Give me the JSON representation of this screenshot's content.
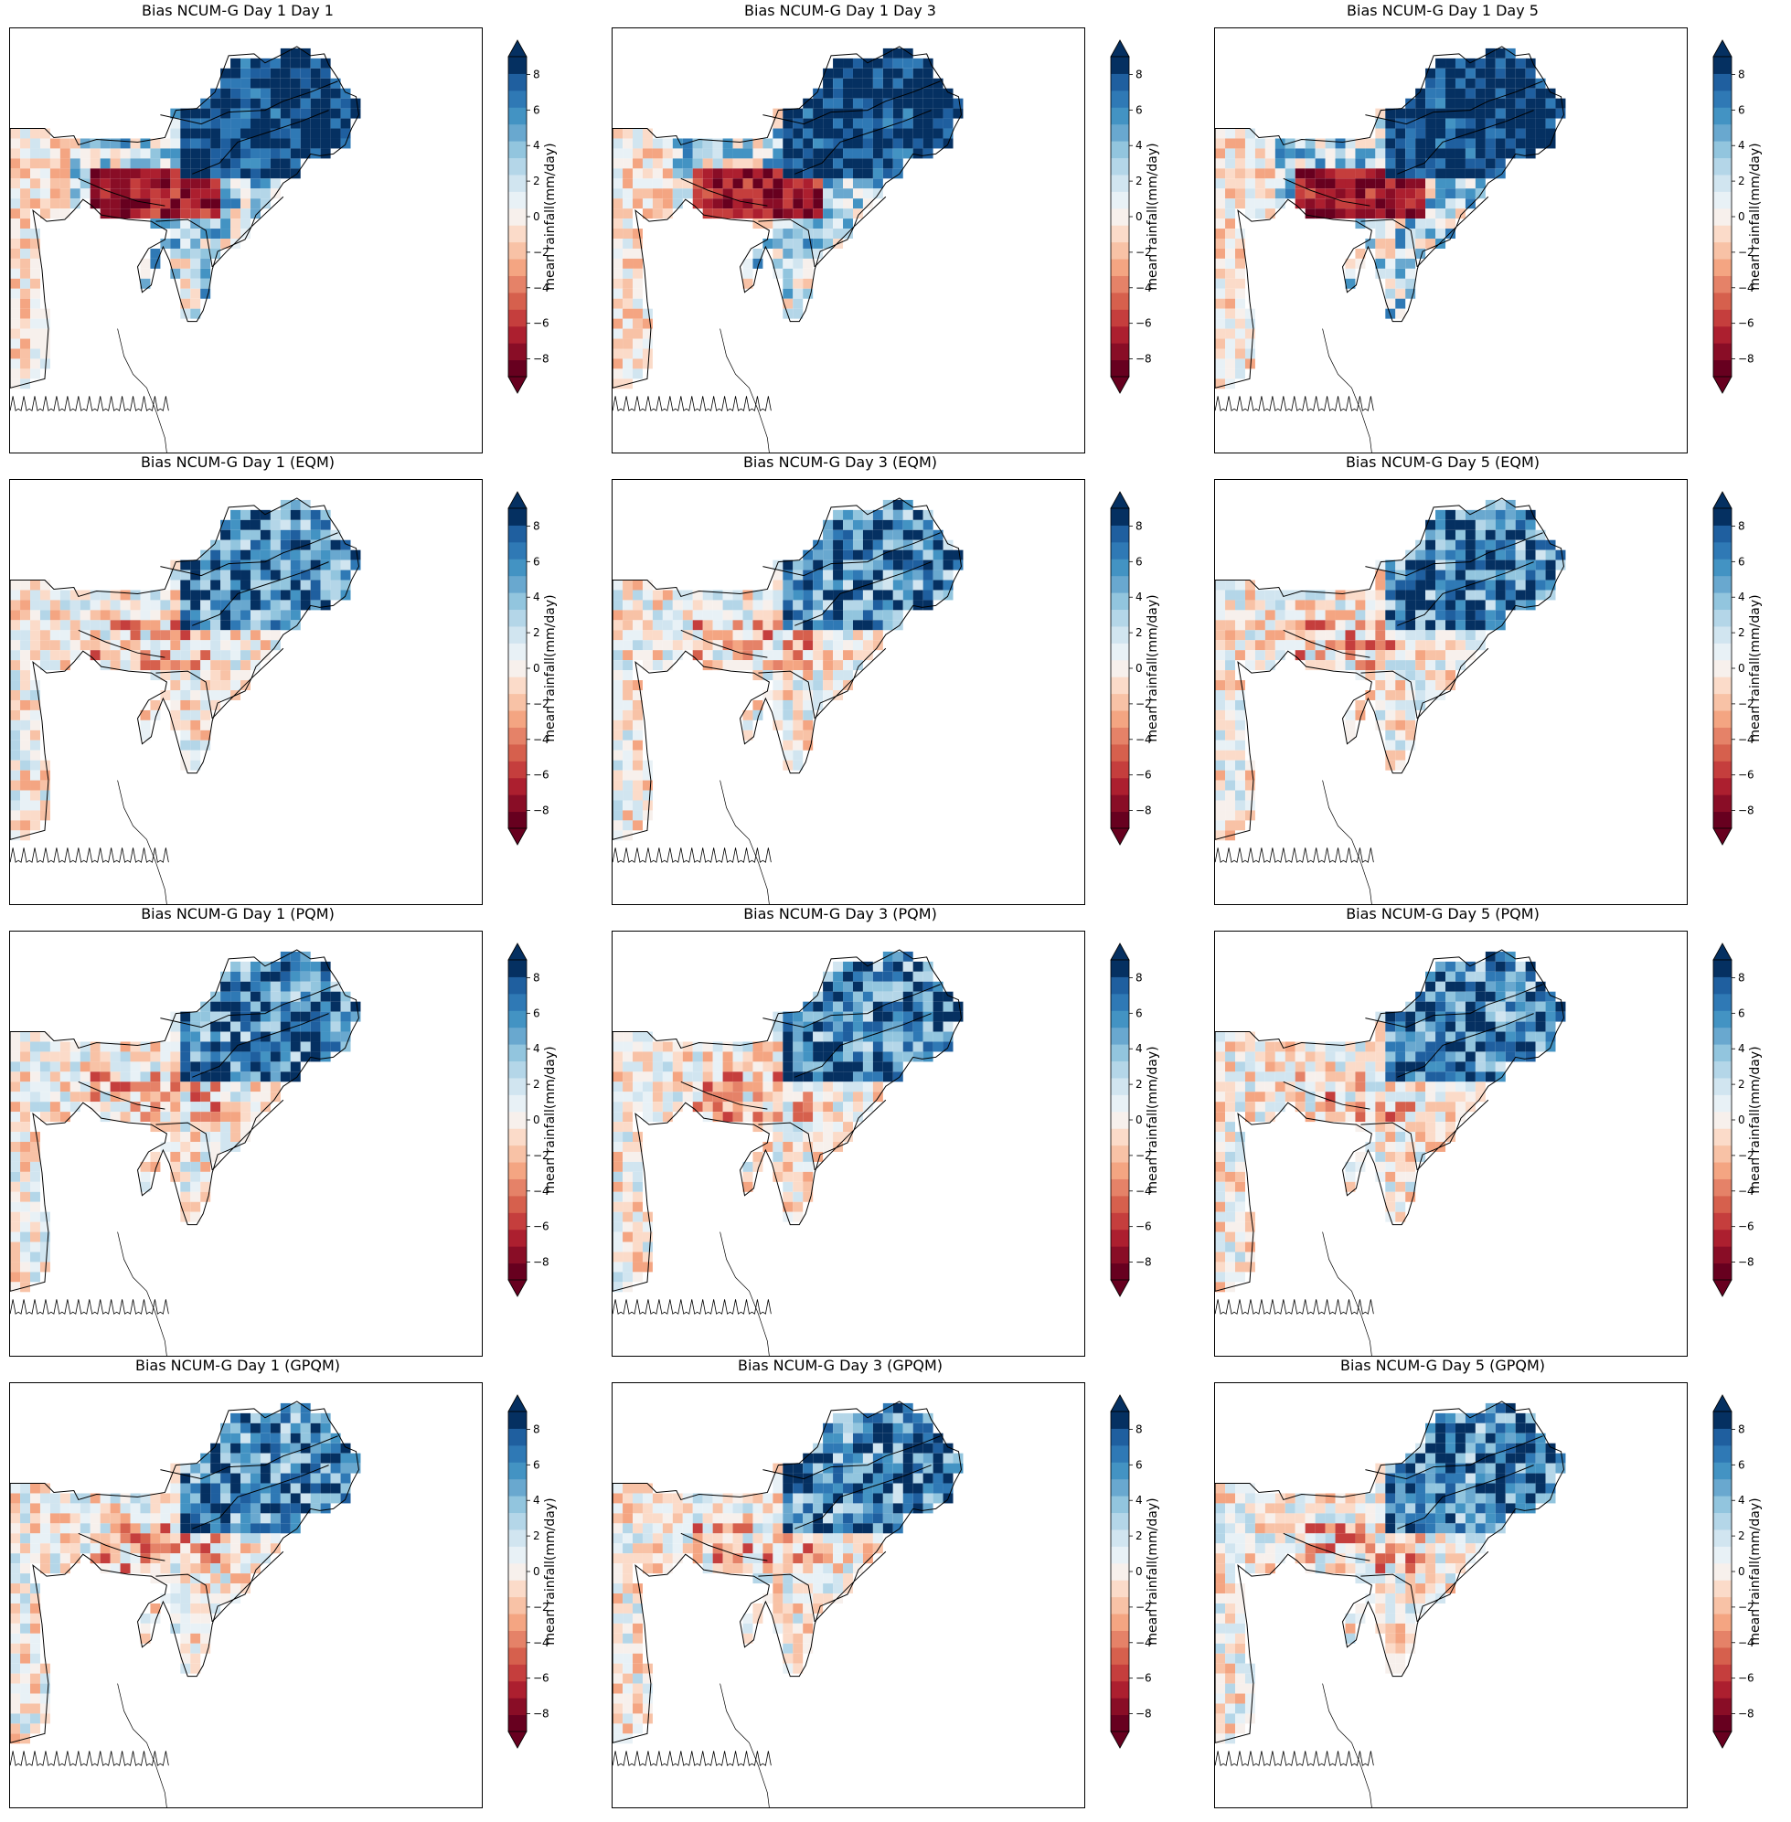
{
  "panels": [
    {
      "title": "Bias NCUM-G Day 1 Day 1"
    },
    {
      "title": "Bias NCUM-G Day 1 Day 3"
    },
    {
      "title": "Bias NCUM-G Day 1 Day 5"
    },
    {
      "title": "Bias NCUM-G Day 1 (EQM)"
    },
    {
      "title": "Bias NCUM-G Day 3 (EQM)"
    },
    {
      "title": "Bias NCUM-G Day 5 (EQM)"
    },
    {
      "title": "Bias NCUM-G Day 1 (PQM)"
    },
    {
      "title": "Bias NCUM-G Day 3 (PQM)"
    },
    {
      "title": "Bias NCUM-G Day 5 (PQM)"
    },
    {
      "title": "Bias NCUM-G Day 1 (GPQM)"
    },
    {
      "title": "Bias NCUM-G Day 3 (GPQM)"
    },
    {
      "title": "Bias NCUM-G Day 5 (GPQM)"
    }
  ],
  "colorbar": {
    "label": "mean rainfall(mm/day)",
    "ticks": [
      "8",
      "6",
      "4",
      "2",
      "0",
      "−2",
      "−4",
      "−6",
      "−8"
    ],
    "range": [
      -9,
      9
    ],
    "extend": "both",
    "colors": [
      "#67001f",
      "#890d26",
      "#ac1f2f",
      "#c53e3d",
      "#d6604d",
      "#e58268",
      "#f4a582",
      "#f8c2a6",
      "#fbdbc9",
      "#f7f0ec",
      "#e8f1f6",
      "#d1e5f0",
      "#b4d6e8",
      "#92c5de",
      "#69a8cf",
      "#4393c3",
      "#2f79b5",
      "#1f5f9f",
      "#053061"
    ]
  }
}
